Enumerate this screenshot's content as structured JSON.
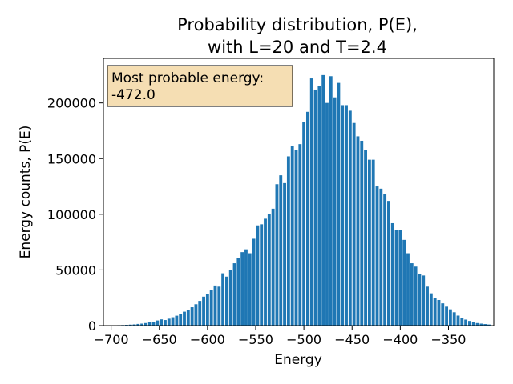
{
  "chart_data": {
    "type": "bar",
    "title_lines": [
      "Probability distribution, P(E),",
      "with L=20 and T=2.4"
    ],
    "xlabel": "Energy",
    "ylabel": "Energy counts, P(E)",
    "xlim": [
      -708,
      -303
    ],
    "ylim": [
      0,
      240000
    ],
    "xticks": [
      -700,
      -650,
      -600,
      -550,
      -500,
      -450,
      -400,
      -350
    ],
    "xtick_labels": [
      "−700",
      "−650",
      "−600",
      "−550",
      "−500",
      "−450",
      "−400",
      "−350"
    ],
    "yticks": [
      0,
      50000,
      100000,
      150000,
      200000
    ],
    "ytick_labels": [
      "0",
      "50000",
      "100000",
      "150000",
      "200000"
    ],
    "bar_width": 3.2,
    "bar_color": "#1f77b4",
    "grid": false,
    "annotation": {
      "lines": [
        "Most probable energy:",
        "-472.0"
      ],
      "background": "#f5deb3",
      "placement": "top-left"
    },
    "x": [
      -700,
      -696,
      -692,
      -688,
      -684,
      -680,
      -676,
      -672,
      -668,
      -664,
      -660,
      -656,
      -652,
      -648,
      -644,
      -640,
      -636,
      -632,
      -628,
      -624,
      -620,
      -616,
      -612,
      -608,
      -604,
      -600,
      -596,
      -592,
      -588,
      -584,
      -580,
      -576,
      -572,
      -568,
      -564,
      -560,
      -556,
      -552,
      -548,
      -544,
      -540,
      -536,
      -532,
      -528,
      -524,
      -520,
      -516,
      -512,
      -508,
      -504,
      -500,
      -496,
      -492,
      -488,
      -484,
      -480,
      -476,
      -472,
      -468,
      -464,
      -460,
      -456,
      -452,
      -448,
      -444,
      -440,
      -436,
      -432,
      -428,
      -424,
      -420,
      -416,
      -412,
      -408,
      -404,
      -400,
      -396,
      -392,
      -388,
      -384,
      -380,
      -376,
      -372,
      -368,
      -364,
      -360,
      -356,
      -352,
      -348,
      -344,
      -340,
      -336,
      -332,
      -328,
      -324,
      -320,
      -316,
      -312,
      -308
    ],
    "values": [
      300,
      300,
      400,
      500,
      700,
      900,
      1100,
      1500,
      1800,
      2300,
      3000,
      3600,
      4600,
      5600,
      5000,
      6200,
      7500,
      8900,
      10700,
      12500,
      14300,
      16500,
      19200,
      22200,
      26000,
      28300,
      32000,
      36000,
      35000,
      47000,
      44000,
      50000,
      56000,
      61000,
      66000,
      68500,
      65000,
      78000,
      90000,
      91000,
      96000,
      100000,
      105000,
      127000,
      135000,
      128000,
      152000,
      161000,
      158000,
      163000,
      183000,
      192000,
      222000,
      212000,
      215000,
      225000,
      200000,
      224000,
      205000,
      218000,
      198000,
      198000,
      193000,
      182000,
      170000,
      166000,
      158000,
      149000,
      149000,
      125000,
      123000,
      118000,
      112000,
      92000,
      86000,
      86000,
      77000,
      65000,
      56000,
      53000,
      46000,
      45000,
      35000,
      29000,
      25000,
      23000,
      20000,
      17000,
      14600,
      12000,
      9000,
      7000,
      5400,
      4200,
      3000,
      2300,
      1800,
      1400,
      1000
    ]
  }
}
